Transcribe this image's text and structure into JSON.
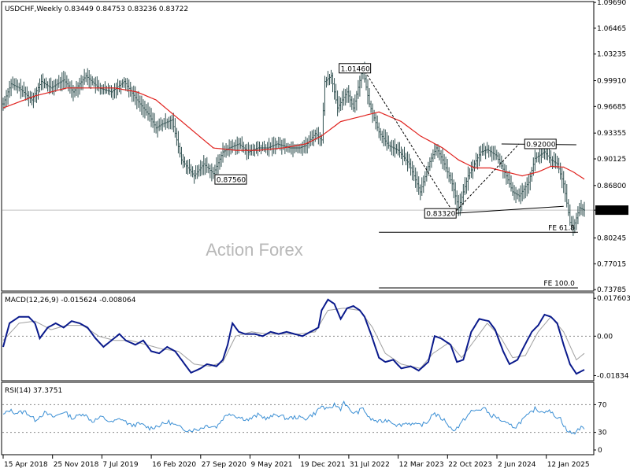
{
  "header": {
    "symbol_line": "USDCHF,Weekly  0.83449 0.84753 0.83236 0.83722",
    "macd_line": "MACD(12,26,9) -0.015624 -0.008064",
    "rsi_line": "RSI(14) 37.3751"
  },
  "watermark": "Action Forex",
  "colors": {
    "price": "#2f4f4f",
    "ma": "#e0201c",
    "macd": "#0a1a8c",
    "signal": "#a0a0a0",
    "rsi": "#3b8fd4",
    "panel_border": "#000000",
    "grid": "#888888"
  },
  "chart_data": [
    {
      "type": "line",
      "panel": "price",
      "ylim": [
        0.738,
        1.096
      ],
      "y_ticks": [
        "1.09690",
        "1.06465",
        "1.03235",
        "0.99910",
        "0.96685",
        "0.93355",
        "0.90125",
        "0.86800",
        "0.83722",
        "0.80245",
        "0.77015",
        "0.73785"
      ],
      "current_price_label": "0.83722",
      "x_tick_labels": [
        "15 Apr 2018",
        "25 Nov 2018",
        "7 Jul 2019",
        "16 Feb 2020",
        "27 Sep 2020",
        "9 May 2021",
        "19 Dec 2021",
        "31 Jul 2022",
        "12 Mar 2023",
        "22 Oct 2023",
        "2 Jun 2024",
        "12 Jan 2025"
      ],
      "x_range_bars": [
        0,
        365
      ],
      "price_knots": [
        [
          0,
          0.97
        ],
        [
          5,
          0.995
        ],
        [
          10,
          0.99
        ],
        [
          18,
          0.975
        ],
        [
          24,
          0.998
        ],
        [
          30,
          0.99
        ],
        [
          38,
          1.0
        ],
        [
          44,
          0.985
        ],
        [
          52,
          1.005
        ],
        [
          60,
          0.99
        ],
        [
          68,
          0.985
        ],
        [
          76,
          0.998
        ],
        [
          84,
          0.975
        ],
        [
          92,
          0.955
        ],
        [
          96,
          0.94
        ],
        [
          100,
          0.945
        ],
        [
          106,
          0.95
        ],
        [
          112,
          0.9
        ],
        [
          120,
          0.88
        ],
        [
          126,
          0.895
        ],
        [
          132,
          0.883
        ],
        [
          138,
          0.91
        ],
        [
          142,
          0.915
        ],
        [
          148,
          0.92
        ],
        [
          154,
          0.91
        ],
        [
          160,
          0.915
        ],
        [
          166,
          0.915
        ],
        [
          172,
          0.92
        ],
        [
          180,
          0.915
        ],
        [
          186,
          0.915
        ],
        [
          190,
          0.918
        ],
        [
          196,
          0.933
        ],
        [
          200,
          0.925
        ],
        [
          202,
          0.998
        ],
        [
          206,
          1.005
        ],
        [
          210,
          0.965
        ],
        [
          216,
          0.985
        ],
        [
          220,
          0.965
        ],
        [
          225,
          1.008
        ],
        [
          226,
          1.012
        ],
        [
          230,
          0.97
        ],
        [
          236,
          0.935
        ],
        [
          242,
          0.918
        ],
        [
          248,
          0.912
        ],
        [
          255,
          0.895
        ],
        [
          262,
          0.86
        ],
        [
          268,
          0.898
        ],
        [
          272,
          0.915
        ],
        [
          276,
          0.9
        ],
        [
          282,
          0.87
        ],
        [
          286,
          0.84
        ],
        [
          292,
          0.88
        ],
        [
          296,
          0.895
        ],
        [
          300,
          0.91
        ],
        [
          304,
          0.913
        ],
        [
          310,
          0.905
        ],
        [
          316,
          0.88
        ],
        [
          320,
          0.86
        ],
        [
          324,
          0.855
        ],
        [
          330,
          0.872
        ],
        [
          334,
          0.902
        ],
        [
          340,
          0.91
        ],
        [
          344,
          0.9
        ],
        [
          348,
          0.895
        ],
        [
          352,
          0.87
        ],
        [
          356,
          0.822
        ],
        [
          358,
          0.815
        ],
        [
          362,
          0.84
        ],
        [
          365,
          0.8372
        ]
      ],
      "ma_knots": [
        [
          0,
          0.965
        ],
        [
          20,
          0.98
        ],
        [
          40,
          0.99
        ],
        [
          56,
          0.99
        ],
        [
          70,
          0.99
        ],
        [
          84,
          0.985
        ],
        [
          96,
          0.975
        ],
        [
          108,
          0.955
        ],
        [
          120,
          0.935
        ],
        [
          132,
          0.915
        ],
        [
          146,
          0.912
        ],
        [
          160,
          0.912
        ],
        [
          176,
          0.915
        ],
        [
          190,
          0.92
        ],
        [
          200,
          0.93
        ],
        [
          212,
          0.948
        ],
        [
          226,
          0.955
        ],
        [
          236,
          0.96
        ],
        [
          250,
          0.948
        ],
        [
          262,
          0.93
        ],
        [
          276,
          0.915
        ],
        [
          286,
          0.9
        ],
        [
          296,
          0.89
        ],
        [
          306,
          0.89
        ],
        [
          316,
          0.885
        ],
        [
          326,
          0.88
        ],
        [
          336,
          0.885
        ],
        [
          344,
          0.892
        ],
        [
          352,
          0.891
        ],
        [
          358,
          0.885
        ],
        [
          365,
          0.876
        ]
      ],
      "annotations": [
        {
          "text": "1.01460",
          "bar": 212,
          "price": 1.0146
        },
        {
          "text": "0.87560",
          "bar": 134,
          "price": 0.8756
        },
        {
          "text": "0.83320",
          "bar": 283,
          "price": 0.8332
        },
        {
          "text": "0.92000",
          "bar": 330,
          "price": 0.92
        },
        {
          "text": "FE 61.8",
          "bar": 361,
          "price": 0.8095
        },
        {
          "text": "FE 100.0",
          "bar": 361,
          "price": 0.74
        }
      ]
    },
    {
      "type": "line",
      "panel": "macd",
      "ylim": [
        -0.02,
        0.0195
      ],
      "y_ticks": [
        "0.017603",
        "0.00",
        "-0.01834"
      ],
      "macd_knots": [
        [
          0,
          -0.005
        ],
        [
          4,
          0.006
        ],
        [
          10,
          0.009
        ],
        [
          16,
          0.009
        ],
        [
          20,
          0.006
        ],
        [
          23,
          -0.001
        ],
        [
          28,
          0.004
        ],
        [
          33,
          0.006
        ],
        [
          38,
          0.004
        ],
        [
          43,
          0.007
        ],
        [
          48,
          0.006
        ],
        [
          53,
          0.004
        ],
        [
          58,
          -0.001
        ],
        [
          63,
          -0.005
        ],
        [
          68,
          -0.002
        ],
        [
          73,
          0.001
        ],
        [
          77,
          -0.002
        ],
        [
          83,
          -0.004
        ],
        [
          88,
          -0.002
        ],
        [
          93,
          -0.007
        ],
        [
          98,
          -0.008
        ],
        [
          103,
          -0.005
        ],
        [
          108,
          -0.007
        ],
        [
          113,
          -0.012
        ],
        [
          118,
          -0.017
        ],
        [
          124,
          -0.015
        ],
        [
          128,
          -0.013
        ],
        [
          134,
          -0.014
        ],
        [
          138,
          -0.011
        ],
        [
          141,
          -0.004
        ],
        [
          144,
          0.006
        ],
        [
          148,
          0.002
        ],
        [
          152,
          0.001
        ],
        [
          158,
          0.001
        ],
        [
          163,
          0.0
        ],
        [
          168,
          0.002
        ],
        [
          173,
          0.001
        ],
        [
          178,
          0.002
        ],
        [
          183,
          0.001
        ],
        [
          188,
          0.0
        ],
        [
          193,
          0.002
        ],
        [
          198,
          0.004
        ],
        [
          200,
          0.012
        ],
        [
          204,
          0.017
        ],
        [
          208,
          0.015
        ],
        [
          212,
          0.008
        ],
        [
          216,
          0.013
        ],
        [
          220,
          0.014
        ],
        [
          224,
          0.012
        ],
        [
          227,
          0.009
        ],
        [
          231,
          0.001
        ],
        [
          236,
          -0.01
        ],
        [
          240,
          -0.012
        ],
        [
          245,
          -0.011
        ],
        [
          250,
          -0.015
        ],
        [
          256,
          -0.014
        ],
        [
          261,
          -0.016
        ],
        [
          267,
          -0.012
        ],
        [
          271,
          0.0
        ],
        [
          275,
          -0.001
        ],
        [
          281,
          -0.004
        ],
        [
          285,
          -0.012
        ],
        [
          289,
          -0.011
        ],
        [
          294,
          0.002
        ],
        [
          299,
          0.008
        ],
        [
          305,
          0.007
        ],
        [
          309,
          0.003
        ],
        [
          314,
          -0.007
        ],
        [
          318,
          -0.013
        ],
        [
          323,
          -0.011
        ],
        [
          327,
          -0.005
        ],
        [
          332,
          0.002
        ],
        [
          336,
          0.005
        ],
        [
          340,
          0.01
        ],
        [
          344,
          0.009
        ],
        [
          348,
          0.006
        ],
        [
          352,
          -0.004
        ],
        [
          356,
          -0.013
        ],
        [
          360,
          -0.0175
        ],
        [
          365,
          -0.0156
        ]
      ],
      "signal_knots": [
        [
          0,
          -0.002
        ],
        [
          10,
          0.006
        ],
        [
          20,
          0.007
        ],
        [
          30,
          0.003
        ],
        [
          40,
          0.005
        ],
        [
          50,
          0.005
        ],
        [
          60,
          0.0
        ],
        [
          70,
          -0.002
        ],
        [
          80,
          -0.002
        ],
        [
          90,
          -0.004
        ],
        [
          100,
          -0.006
        ],
        [
          110,
          -0.007
        ],
        [
          120,
          -0.013
        ],
        [
          130,
          -0.014
        ],
        [
          138,
          -0.012
        ],
        [
          146,
          0.0
        ],
        [
          156,
          0.002
        ],
        [
          166,
          0.001
        ],
        [
          176,
          0.001
        ],
        [
          186,
          0.001
        ],
        [
          196,
          0.002
        ],
        [
          204,
          0.012
        ],
        [
          214,
          0.013
        ],
        [
          224,
          0.012
        ],
        [
          232,
          0.004
        ],
        [
          240,
          -0.008
        ],
        [
          250,
          -0.013
        ],
        [
          262,
          -0.015
        ],
        [
          270,
          -0.008
        ],
        [
          280,
          -0.003
        ],
        [
          288,
          -0.01
        ],
        [
          296,
          -0.002
        ],
        [
          304,
          0.006
        ],
        [
          312,
          0.0
        ],
        [
          320,
          -0.01
        ],
        [
          328,
          -0.009
        ],
        [
          336,
          0.002
        ],
        [
          344,
          0.009
        ],
        [
          352,
          0.002
        ],
        [
          360,
          -0.011
        ],
        [
          365,
          -0.008
        ]
      ]
    },
    {
      "type": "line",
      "panel": "rsi",
      "ylim": [
        0,
        100
      ],
      "y_ticks": [
        "70",
        "30",
        "0"
      ],
      "levels": [
        70,
        30
      ],
      "rsi_knots": [
        [
          0,
          55
        ],
        [
          4,
          62
        ],
        [
          8,
          58
        ],
        [
          14,
          60
        ],
        [
          20,
          48
        ],
        [
          26,
          58
        ],
        [
          32,
          52
        ],
        [
          38,
          60
        ],
        [
          44,
          50
        ],
        [
          50,
          58
        ],
        [
          56,
          46
        ],
        [
          62,
          52
        ],
        [
          68,
          44
        ],
        [
          74,
          50
        ],
        [
          80,
          40
        ],
        [
          86,
          42
        ],
        [
          92,
          36
        ],
        [
          98,
          40
        ],
        [
          104,
          45
        ],
        [
          110,
          38
        ],
        [
          116,
          33
        ],
        [
          122,
          34
        ],
        [
          128,
          40
        ],
        [
          134,
          38
        ],
        [
          138,
          50
        ],
        [
          142,
          58
        ],
        [
          148,
          52
        ],
        [
          154,
          48
        ],
        [
          160,
          55
        ],
        [
          166,
          50
        ],
        [
          172,
          56
        ],
        [
          178,
          50
        ],
        [
          184,
          52
        ],
        [
          190,
          50
        ],
        [
          196,
          58
        ],
        [
          200,
          68
        ],
        [
          204,
          62
        ],
        [
          208,
          70
        ],
        [
          212,
          64
        ],
        [
          214,
          75
        ],
        [
          218,
          60
        ],
        [
          222,
          58
        ],
        [
          226,
          65
        ],
        [
          230,
          50
        ],
        [
          236,
          45
        ],
        [
          242,
          48
        ],
        [
          248,
          40
        ],
        [
          254,
          44
        ],
        [
          260,
          40
        ],
        [
          266,
          43
        ],
        [
          270,
          58
        ],
        [
          274,
          52
        ],
        [
          278,
          46
        ],
        [
          282,
          33
        ],
        [
          286,
          38
        ],
        [
          290,
          50
        ],
        [
          294,
          60
        ],
        [
          298,
          62
        ],
        [
          302,
          65
        ],
        [
          306,
          55
        ],
        [
          310,
          52
        ],
        [
          314,
          45
        ],
        [
          318,
          40
        ],
        [
          322,
          38
        ],
        [
          326,
          48
        ],
        [
          330,
          55
        ],
        [
          334,
          64
        ],
        [
          338,
          60
        ],
        [
          342,
          62
        ],
        [
          346,
          55
        ],
        [
          350,
          50
        ],
        [
          354,
          32
        ],
        [
          358,
          28
        ],
        [
          362,
          36
        ],
        [
          365,
          37
        ]
      ]
    }
  ]
}
